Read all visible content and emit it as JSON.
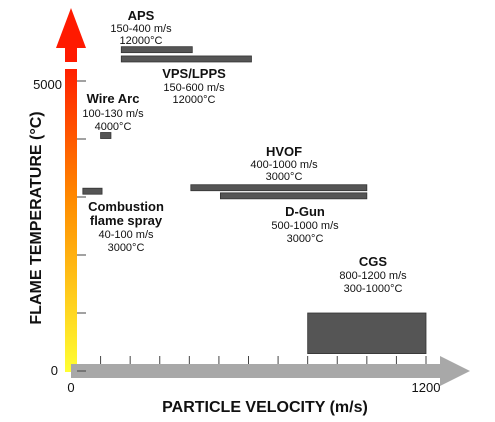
{
  "chart_data": {
    "type": "range_bars",
    "xlabel": "PARTICLE VELOCITY (m/s)",
    "ylabel": "FLAME TEMPERATURE (°C)",
    "xlim": [
      0,
      1200
    ],
    "ylim": [
      0,
      5000
    ],
    "x_ticks": [
      {
        "value": 0,
        "label": "0"
      },
      {
        "value": 1200,
        "label": "1200"
      }
    ],
    "y_ticks": [
      {
        "value": 0,
        "label": "0"
      },
      {
        "value": 5000,
        "label": "5000"
      }
    ],
    "colors": {
      "bar": "#555555",
      "gradient_top": "#ff1a00",
      "gradient_mid": "#ff8c00",
      "gradient_bottom": "#ffff33",
      "x_arrow": "#a8a8a8"
    },
    "processes": [
      {
        "name": "APS",
        "velocity": "150-400 m/s",
        "temperature": "12000°C",
        "bars": [
          {
            "x": [
              170,
              410
            ],
            "y": 5540
          }
        ]
      },
      {
        "name": "VPS/LPPS",
        "velocity": "150-600 m/s",
        "temperature": "12000°C",
        "bars": [
          {
            "x": [
              170,
              610
            ],
            "y": 5380
          }
        ]
      },
      {
        "name": "Wire Arc",
        "velocity": "100-130 m/s",
        "temperature": "4000°C",
        "bars": [
          {
            "x": [
              100,
              135
            ],
            "y": 4060
          }
        ]
      },
      {
        "name": "Combustion flame spray",
        "velocity": "40-100 m/s",
        "temperature": "3000°C",
        "bars": [
          {
            "x": [
              40,
              105
            ],
            "y": 3100
          }
        ]
      },
      {
        "name": "HVOF",
        "velocity": "400-1000 m/s",
        "temperature": "3000°C",
        "bars": [
          {
            "x": [
              405,
              1000
            ],
            "y": 3160
          }
        ]
      },
      {
        "name": "D-Gun",
        "velocity": "500-1000 m/s",
        "temperature": "3000°C",
        "bars": [
          {
            "x": [
              505,
              1000
            ],
            "y": 3020
          }
        ]
      },
      {
        "name": "CGS",
        "velocity": "800-1200 m/s",
        "temperature": "300-1000°C",
        "bars": [
          {
            "x": [
              800,
              1200
            ],
            "y": [
              300,
              1000
            ]
          }
        ]
      }
    ]
  }
}
